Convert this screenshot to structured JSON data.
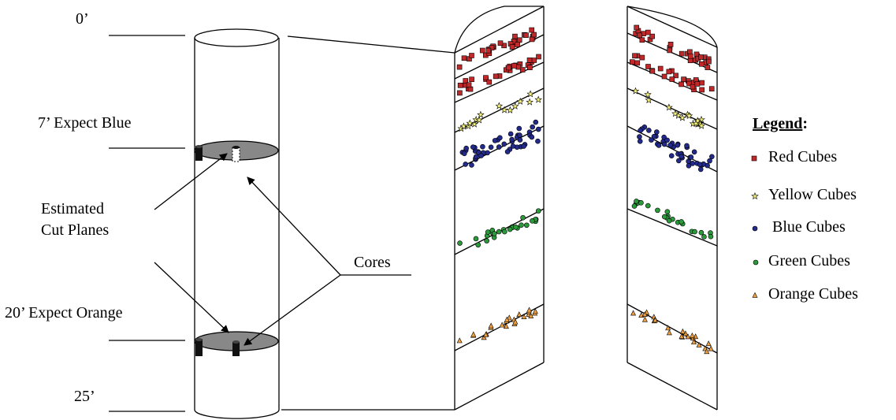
{
  "depth_labels": {
    "top": "0’",
    "blue": "7’ Expect Blue",
    "orange": "20’ Expect Orange",
    "bottom": "25’"
  },
  "annotations": {
    "cut_planes_line1": "Estimated",
    "cut_planes_line2": "Cut Planes",
    "cores": "Cores"
  },
  "legend": {
    "title": "Legend",
    "title_suffix": ":",
    "items": [
      {
        "label": "Red Cubes",
        "color": "#c0282a",
        "marker": "square"
      },
      {
        "label": "Yellow Cubes",
        "color": "#f2ee7a",
        "marker": "star"
      },
      {
        "label": "Blue Cubes",
        "color": "#222a8c",
        "marker": "circle"
      },
      {
        "label": "Green Cubes",
        "color": "#2a9a3a",
        "marker": "circle"
      },
      {
        "label": "Orange Cubes",
        "color": "#f0a040",
        "marker": "triangle"
      }
    ]
  },
  "colors": {
    "plane_fill": "#888888",
    "core_fill": "#222222"
  }
}
